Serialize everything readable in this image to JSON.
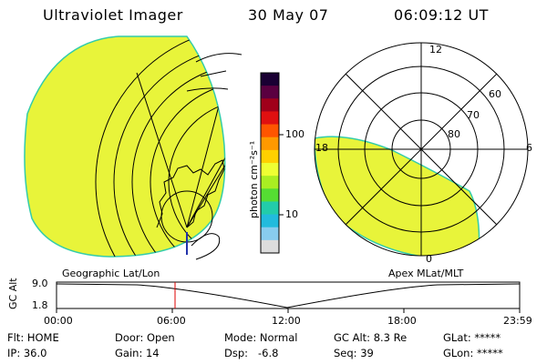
{
  "header": {
    "title": "Ultraviolet Imager",
    "date": "30 May 07",
    "time": "06:09:12 UT"
  },
  "left_panel": {
    "label": "Geographic Lat/Lon"
  },
  "right_panel": {
    "label": "Apex MLat/MLT",
    "mlt_labels": {
      "top": "12",
      "left": "18",
      "right": "6",
      "bottom": "0"
    },
    "lat_labels": [
      "60",
      "70",
      "80"
    ]
  },
  "colorbar": {
    "unit_label": "photon cm⁻²s⁻¹",
    "ticks": [
      "100",
      "10"
    ],
    "colors": [
      "#1a0033",
      "#5a0040",
      "#a0001a",
      "#e01010",
      "#ff5500",
      "#ff9900",
      "#ffd000",
      "#eeff33",
      "#aaee22",
      "#55dd33",
      "#22ccaa",
      "#22bbdd",
      "#88ccee",
      "#dddddd"
    ]
  },
  "altitude_plot": {
    "ylabel": "GC Alt",
    "ymax": "9.0",
    "ymin": "1.8",
    "x_ticks": [
      "00:00",
      "06:00",
      "12:00",
      "18:00",
      "23:59"
    ],
    "marker_time": "06:09:12",
    "marker_color": "#dd0000"
  },
  "status": {
    "flt": "Flt: HOME",
    "ip": "IP: 36.0",
    "door": "Door: Open",
    "gain": "Gain: 14",
    "mode": "Mode: Normal",
    "dsp": "Dsp:   -6.8",
    "gcalt": "GC Alt: 8.3 Re",
    "seq": "Seq: 39",
    "glat": "GLat: *****",
    "glon": "GLon: *****"
  },
  "colors": {
    "image_fill": "#e8f43a",
    "image_edge": "#33ccaa",
    "grid": "#000000"
  }
}
